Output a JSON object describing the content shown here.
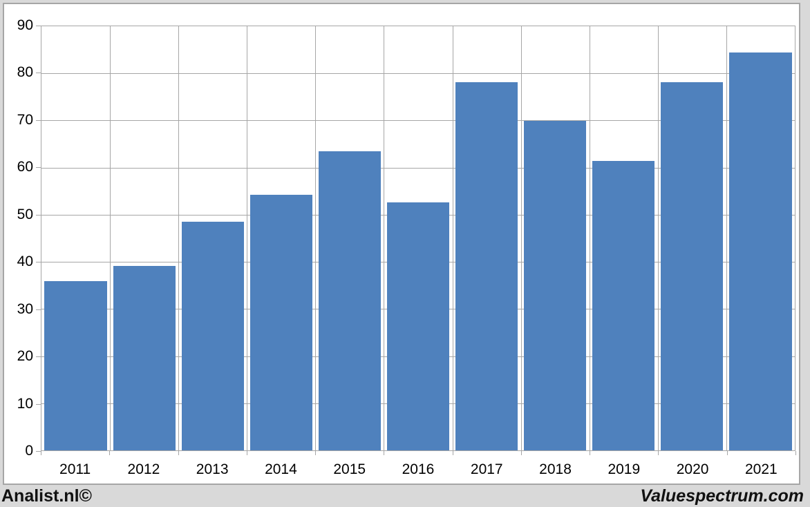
{
  "page": {
    "background_color": "#d9d9d9",
    "chart_box_background": "#ffffff",
    "border_color": "#a6a6a6"
  },
  "footer": {
    "left_credit": "Analist.nl©",
    "right_credit": "Valuespectrum.com",
    "text_color": "#111111"
  },
  "chart_data": {
    "type": "bar",
    "title": "",
    "categories": [
      "2011",
      "2012",
      "2013",
      "2014",
      "2015",
      "2016",
      "2017",
      "2018",
      "2019",
      "2020",
      "2021"
    ],
    "values": [
      35.9,
      39.2,
      48.5,
      54.3,
      63.5,
      52.6,
      78.1,
      69.9,
      61.4,
      78.1,
      84.5
    ],
    "xlabel": "",
    "ylabel": "",
    "ylim": [
      0,
      90
    ],
    "yticks": [
      0,
      10,
      20,
      30,
      40,
      50,
      60,
      70,
      80,
      90
    ],
    "grid": true,
    "legend": "none",
    "bar_color": "#4f81bd",
    "gridline_color": "#a6a6a6",
    "axis_text_color": "#000000"
  }
}
